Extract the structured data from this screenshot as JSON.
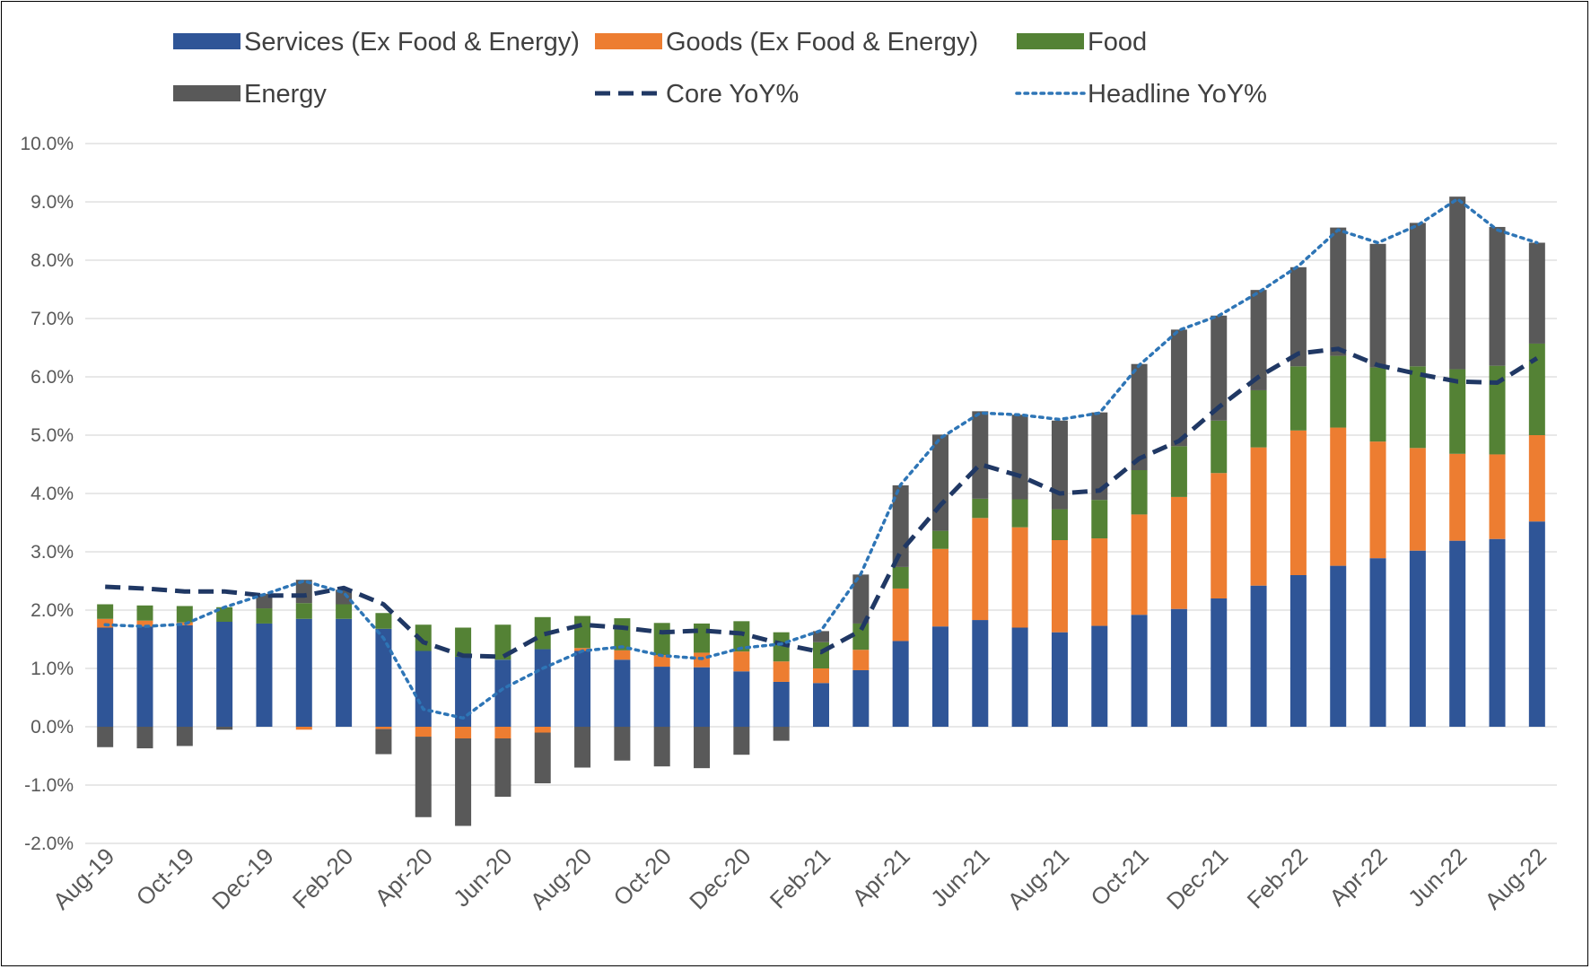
{
  "chart_data": {
    "type": "bar",
    "stacked": true,
    "title": "",
    "xlabel": "",
    "ylabel": "",
    "ylim": [
      -0.02,
      0.1
    ],
    "y_tick_labels": [
      "10.0%",
      "9.0%",
      "8.0%",
      "7.0%",
      "6.0%",
      "5.0%",
      "4.0%",
      "3.0%",
      "2.0%",
      "1.0%",
      "0.0%",
      "-1.0%",
      "-2.0%"
    ],
    "y_ticks": [
      0.1,
      0.09,
      0.08,
      0.07,
      0.06,
      0.05,
      0.04,
      0.03,
      0.02,
      0.01,
      0.0,
      -0.01,
      -0.02
    ],
    "grid": true,
    "legend_position": "top",
    "categories": [
      "Aug-19",
      "Sep-19",
      "Oct-19",
      "Nov-19",
      "Dec-19",
      "Jan-20",
      "Feb-20",
      "Mar-20",
      "Apr-20",
      "May-20",
      "Jun-20",
      "Jul-20",
      "Aug-20",
      "Sep-20",
      "Oct-20",
      "Nov-20",
      "Dec-20",
      "Jan-21",
      "Feb-21",
      "Mar-21",
      "Apr-21",
      "May-21",
      "Jun-21",
      "Jul-21",
      "Aug-21",
      "Sep-21",
      "Oct-21",
      "Nov-21",
      "Dec-21",
      "Jan-22",
      "Feb-22",
      "Mar-22",
      "Apr-22",
      "May-22",
      "Jun-22",
      "Jul-22",
      "Aug-22"
    ],
    "x_tick_labels": [
      "Aug-19",
      "Oct-19",
      "Dec-19",
      "Feb-20",
      "Apr-20",
      "Jun-20",
      "Aug-20",
      "Oct-20",
      "Dec-20",
      "Feb-21",
      "Apr-21",
      "Jun-21",
      "Aug-21",
      "Oct-21",
      "Dec-21",
      "Feb-22",
      "Apr-22",
      "Jun-22",
      "Aug-22"
    ],
    "bar_series": [
      {
        "name": "Services (Ex Food & Energy)",
        "color": "#2F5597",
        "values": [
          0.017,
          0.0172,
          0.0174,
          0.018,
          0.0177,
          0.0185,
          0.0185,
          0.0168,
          0.013,
          0.012,
          0.0115,
          0.0133,
          0.013,
          0.0115,
          0.0103,
          0.0102,
          0.0095,
          0.0077,
          0.0075,
          0.0097,
          0.0147,
          0.0172,
          0.0183,
          0.017,
          0.0162,
          0.0173,
          0.0192,
          0.0202,
          0.022,
          0.0242,
          0.026,
          0.0276,
          0.0289,
          0.0302,
          0.0319,
          0.0322,
          0.0352
        ]
      },
      {
        "name": "Goods (Ex Food & Energy)",
        "color": "#ED7D31",
        "values": [
          0.0015,
          0.001,
          0.0005,
          0.0,
          0.0,
          -0.0005,
          0.0,
          -0.0004,
          -0.0017,
          -0.002,
          -0.002,
          -0.001,
          0.0005,
          0.0016,
          0.002,
          0.0025,
          0.0034,
          0.0035,
          0.0025,
          0.0035,
          0.009,
          0.0133,
          0.0175,
          0.0172,
          0.0158,
          0.015,
          0.0172,
          0.0192,
          0.0215,
          0.0237,
          0.0248,
          0.0237,
          0.02,
          0.0176,
          0.0149,
          0.0145,
          0.0148
        ]
      },
      {
        "name": "Food",
        "color": "#548235",
        "values": [
          0.0025,
          0.0026,
          0.0028,
          0.0025,
          0.0026,
          0.0027,
          0.0025,
          0.0027,
          0.0045,
          0.005,
          0.006,
          0.0055,
          0.0055,
          0.0055,
          0.0055,
          0.005,
          0.0052,
          0.005,
          0.0045,
          0.0045,
          0.0037,
          0.0031,
          0.0033,
          0.0048,
          0.0053,
          0.0066,
          0.0076,
          0.0087,
          0.009,
          0.0098,
          0.011,
          0.0123,
          0.0127,
          0.014,
          0.0145,
          0.0152,
          0.0157
        ]
      },
      {
        "name": "Energy",
        "color": "#595959",
        "values": [
          -0.0035,
          -0.0037,
          -0.0033,
          -0.0005,
          0.0025,
          0.004,
          0.0025,
          -0.0043,
          -0.0138,
          -0.015,
          -0.01,
          -0.0087,
          -0.007,
          -0.0058,
          -0.0068,
          -0.0071,
          -0.0048,
          -0.0024,
          0.0019,
          0.0084,
          0.014,
          0.0165,
          0.015,
          0.0145,
          0.0152,
          0.015,
          0.0182,
          0.02,
          0.018,
          0.0172,
          0.017,
          0.022,
          0.0212,
          0.0246,
          0.0296,
          0.0238,
          0.0173
        ]
      }
    ],
    "line_series": [
      {
        "name": "Core YoY%",
        "style": "dashed",
        "color": "#203864",
        "values": [
          0.024,
          0.0237,
          0.0232,
          0.0232,
          0.0225,
          0.0225,
          0.0238,
          0.021,
          0.0145,
          0.0122,
          0.012,
          0.0158,
          0.0175,
          0.017,
          0.0162,
          0.0165,
          0.016,
          0.0142,
          0.0128,
          0.0165,
          0.03,
          0.038,
          0.045,
          0.043,
          0.04,
          0.0405,
          0.046,
          0.049,
          0.0548,
          0.06,
          0.064,
          0.0648,
          0.062,
          0.0605,
          0.0592,
          0.059,
          0.0632
        ]
      },
      {
        "name": "Headline YoY%",
        "style": "dotted",
        "color": "#2E75B6",
        "values": [
          0.0175,
          0.0172,
          0.0176,
          0.0205,
          0.0227,
          0.025,
          0.023,
          0.0152,
          0.003,
          0.0015,
          0.0065,
          0.01,
          0.013,
          0.0137,
          0.0122,
          0.0117,
          0.0135,
          0.0142,
          0.0165,
          0.0262,
          0.0415,
          0.0495,
          0.0538,
          0.0535,
          0.0527,
          0.0538,
          0.062,
          0.068,
          0.0705,
          0.0745,
          0.079,
          0.0852,
          0.083,
          0.086,
          0.0905,
          0.0852,
          0.083
        ]
      }
    ]
  }
}
